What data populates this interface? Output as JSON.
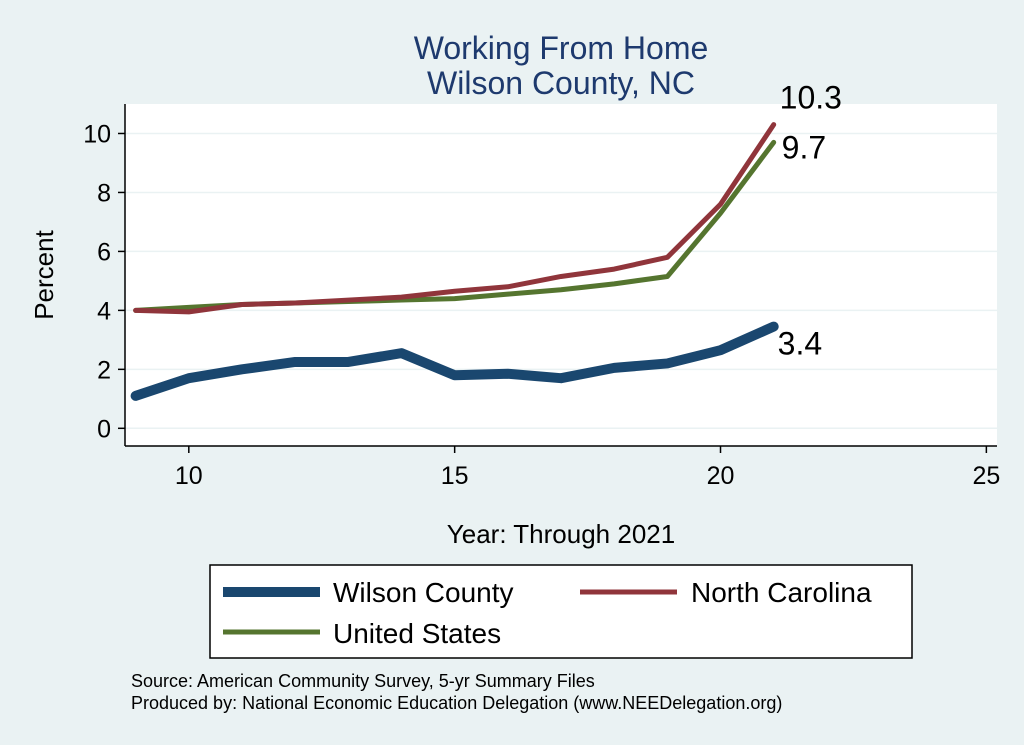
{
  "chart_data": {
    "type": "line",
    "title": [
      "Working From Home",
      "Wilson County, NC"
    ],
    "xlabel": "Year: Through 2021",
    "ylabel": "Percent",
    "xlim": [
      8.8,
      25.2
    ],
    "ylim": [
      -0.6,
      11
    ],
    "xticks": [
      10,
      15,
      20,
      25
    ],
    "yticks": [
      0,
      2,
      4,
      6,
      8,
      10
    ],
    "grid": "horizontal",
    "legend_position": "bottom",
    "x": [
      9,
      10,
      11,
      12,
      13,
      14,
      15,
      16,
      17,
      18,
      19,
      20,
      21
    ],
    "series": [
      {
        "name": "Wilson County",
        "color": "#1a476f",
        "width": 10,
        "values": [
          1.1,
          1.7,
          2.0,
          2.25,
          2.25,
          2.55,
          1.8,
          1.85,
          1.7,
          2.05,
          2.2,
          2.65,
          3.45
        ],
        "end_label": "3.4"
      },
      {
        "name": "North Carolina",
        "color": "#90353b",
        "width": 5,
        "values": [
          4.0,
          3.95,
          4.2,
          4.25,
          4.35,
          4.45,
          4.65,
          4.8,
          5.15,
          5.4,
          5.8,
          7.6,
          10.3
        ],
        "end_label": "10.3"
      },
      {
        "name": "United States",
        "color": "#55752f",
        "width": 5,
        "values": [
          4.0,
          4.1,
          4.2,
          4.25,
          4.3,
          4.35,
          4.4,
          4.55,
          4.7,
          4.9,
          5.15,
          7.3,
          9.7
        ],
        "end_label": "9.7"
      }
    ],
    "notes": [
      "Source: American Community Survey, 5-yr Summary Files",
      "Produced by: National Economic Education Delegation (www.NEEDelegation.org)"
    ]
  },
  "colors": {
    "background": "#eaf2f3",
    "plot_background": "#ffffff",
    "title": "#1e3a6e",
    "gridline": "#eaf2f3"
  }
}
